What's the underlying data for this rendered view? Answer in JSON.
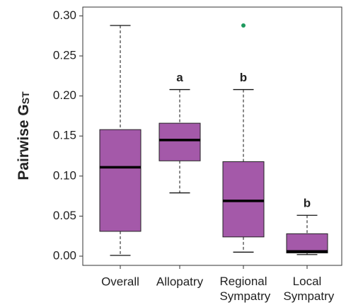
{
  "chart_data": {
    "type": "box",
    "ylabel": "Pairwise G",
    "ylabel_sub": "ST",
    "categories": [
      "Overall",
      "Allopatry",
      "Regional Sympatry",
      "Local Sympatry"
    ],
    "boxes": [
      {
        "low": 0.001,
        "q1": 0.031,
        "median": 0.111,
        "q3": 0.158,
        "high": 0.288
      },
      {
        "low": 0.079,
        "q1": 0.119,
        "median": 0.145,
        "q3": 0.166,
        "high": 0.208
      },
      {
        "low": 0.005,
        "q1": 0.024,
        "median": 0.069,
        "q3": 0.118,
        "high": 0.208
      },
      {
        "low": 0.002,
        "q1": 0.004,
        "median": 0.006,
        "q3": 0.028,
        "high": 0.051
      }
    ],
    "outliers": [
      [],
      [],
      [
        0.288
      ],
      []
    ],
    "letters": [
      null,
      "a",
      "b",
      "b"
    ],
    "color": "#a459a9",
    "outlier_color": "#1f9a5e",
    "ylim": [
      -0.0115,
      0.311
    ],
    "yticks": [
      {
        "value": 0,
        "label": "0.00"
      },
      {
        "value": 0.05,
        "label": "0.05"
      },
      {
        "value": 0.1,
        "label": "0.10"
      },
      {
        "value": 0.15,
        "label": "0.15"
      },
      {
        "value": 0.2,
        "label": "0.20"
      },
      {
        "value": 0.25,
        "label": "0.25"
      },
      {
        "value": 0.3,
        "label": "0.30"
      }
    ]
  }
}
